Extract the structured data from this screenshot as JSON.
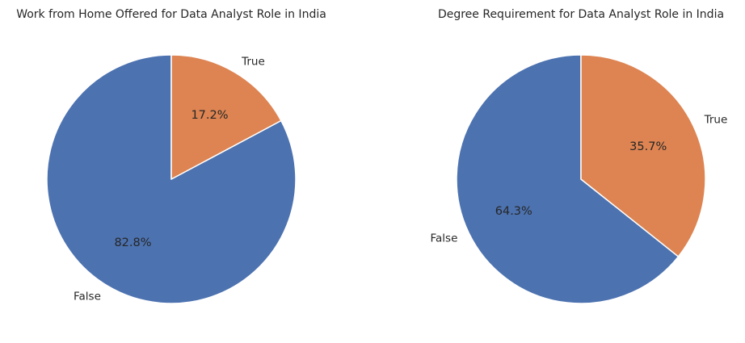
{
  "chart_data": [
    {
      "type": "pie",
      "title": "Work from Home Offered for Data Analyst Role in India",
      "categories": [
        "False",
        "True"
      ],
      "values": [
        82.8,
        17.2
      ],
      "value_labels": [
        "82.8%",
        "17.2%"
      ],
      "colors": [
        "#4c72b0",
        "#dd8452"
      ],
      "start": "12 o'clock",
      "direction": "counterclockwise"
    },
    {
      "type": "pie",
      "title": "Degree Requirement for Data Analyst Role in India",
      "categories": [
        "False",
        "True"
      ],
      "values": [
        64.3,
        35.7
      ],
      "value_labels": [
        "64.3%",
        "35.7%"
      ],
      "colors": [
        "#4c72b0",
        "#dd8452"
      ],
      "start": "12 o'clock",
      "direction": "counterclockwise"
    }
  ]
}
